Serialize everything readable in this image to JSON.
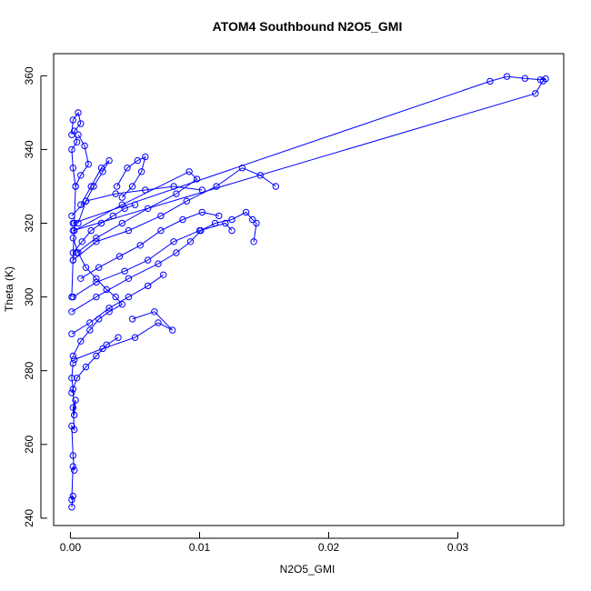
{
  "chart_data": {
    "type": "scatter",
    "title": "ATOM4 Southbound N2O5_GMI",
    "xlabel": "N2O5_GMI",
    "ylabel": "Theta (K)",
    "xlim": [
      -0.0013,
      0.0382
    ],
    "ylim": [
      238,
      366
    ],
    "xticks": [
      0.0,
      0.01,
      0.02,
      0.03
    ],
    "xtick_labels": [
      "0.00",
      "0.01",
      "0.02",
      "0.03"
    ],
    "yticks": [
      240,
      260,
      280,
      300,
      320,
      340,
      360
    ],
    "ytick_labels": [
      "240",
      "260",
      "280",
      "300",
      "320",
      "340",
      "360"
    ],
    "marker": "open-circle",
    "connected": true,
    "grid": false,
    "legend": "none",
    "color": "#0000ff",
    "series": [
      {
        "x": [
          0.0001,
          0.0002,
          0.0001,
          0.0002,
          0.0003,
          0.0002,
          0.0001,
          0.0003,
          0.0002,
          0.0004,
          0.0003,
          0.0002,
          0.0001,
          0.0002
        ],
        "y": [
          243,
          246,
          245,
          254,
          253,
          257,
          265,
          264,
          270,
          272,
          268,
          275,
          278,
          282
        ]
      },
      {
        "x": [
          0.0002,
          0.0008,
          0.0015,
          0.0022,
          0.003,
          0.004,
          0.0035,
          0.0028,
          0.002,
          0.0012,
          0.0006,
          0.0002
        ],
        "y": [
          284,
          288,
          291,
          294,
          296,
          298,
          300,
          302,
          305,
          308,
          312,
          316
        ]
      },
      {
        "x": [
          0.0001,
          0.002,
          0.0045,
          0.0068,
          0.0082,
          0.0093,
          0.0101,
          0.0112,
          0.0125,
          0.0136,
          0.0141,
          0.0144,
          0.0142
        ],
        "y": [
          296,
          300,
          305,
          309,
          312,
          315,
          318,
          320,
          321,
          323,
          321,
          320,
          315
        ]
      },
      {
        "x": [
          0.0002,
          0.002,
          0.0045,
          0.007,
          0.009,
          0.0113,
          0.0133,
          0.0147,
          0.0159
        ],
        "y": [
          310,
          315,
          318,
          322,
          326,
          330,
          335,
          333,
          330
        ]
      },
      {
        "x": [
          0.0003,
          0.004,
          0.0092,
          0.0098,
          0.0082,
          0.006,
          0.004,
          0.002,
          0.0005
        ],
        "y": [
          318,
          325,
          334,
          332,
          328,
          324,
          320,
          316,
          312
        ]
      },
      {
        "x": [
          0.0001,
          0.0002,
          0.0003,
          0.0004,
          0.0002,
          0.0001,
          0.0005,
          0.0003,
          0.0008,
          0.0006,
          0.0002,
          0.0001
        ],
        "y": [
          300,
          310,
          320,
          330,
          335,
          340,
          342,
          345,
          347,
          350,
          348,
          344
        ]
      },
      {
        "x": [
          0.0006,
          0.0012,
          0.0018,
          0.0025,
          0.003,
          0.0024,
          0.0016,
          0.0008
        ],
        "y": [
          320,
          326,
          330,
          334,
          337,
          335,
          330,
          325
        ]
      },
      {
        "x": [
          0.0036,
          0.0044,
          0.0052,
          0.0058,
          0.0055,
          0.0048,
          0.004
        ],
        "y": [
          330,
          335,
          337,
          338,
          334,
          330,
          327
        ]
      },
      {
        "x": [
          0.0003,
          0.0025,
          0.005,
          0.0068,
          0.0079,
          0.0065,
          0.0048
        ],
        "y": [
          283,
          286,
          289,
          293,
          291,
          296,
          294
        ]
      },
      {
        "x": [
          0.0002,
          0.002,
          0.0042,
          0.006,
          0.008,
          0.01,
          0.012,
          0.0125
        ],
        "y": [
          300,
          304,
          307,
          310,
          315,
          318,
          320,
          318
        ]
      },
      {
        "x": [
          0.0008,
          0.0022,
          0.0038,
          0.0054,
          0.007,
          0.0087,
          0.0102,
          0.0115
        ],
        "y": [
          305,
          308,
          311,
          314,
          318,
          321,
          323,
          322
        ]
      },
      {
        "x": [
          0.0001,
          0.0005,
          0.0012,
          0.002,
          0.0028,
          0.0037
        ],
        "y": [
          274,
          278,
          281,
          284,
          287,
          289
        ]
      },
      {
        "x": [
          0.0001,
          0.0012,
          0.0035,
          0.0058,
          0.008,
          0.0102
        ],
        "y": [
          322,
          326,
          328,
          329,
          330,
          329
        ]
      },
      {
        "x": [
          0.0002,
          0.0009,
          0.0016,
          0.0024,
          0.0033,
          0.0042,
          0.005
        ],
        "y": [
          312,
          315,
          318,
          320,
          322,
          324,
          325
        ]
      },
      {
        "x": [
          0.0001,
          0.0015,
          0.003,
          0.0045,
          0.006,
          0.0072
        ],
        "y": [
          290,
          293,
          297,
          300,
          303,
          306
        ]
      },
      {
        "x": [
          0.0004,
          0.0008,
          0.0014,
          0.0011,
          0.0006
        ],
        "y": [
          330,
          333,
          336,
          341,
          344
        ]
      },
      {
        "x": [
          0.0002,
          0.0325,
          0.0338,
          0.0352,
          0.0364,
          0.0368,
          0.0366,
          0.036,
          0.0002
        ],
        "y": [
          320,
          358.5,
          359.8,
          359.3,
          358.9,
          359.2,
          358.6,
          355.2,
          318
        ]
      }
    ]
  }
}
